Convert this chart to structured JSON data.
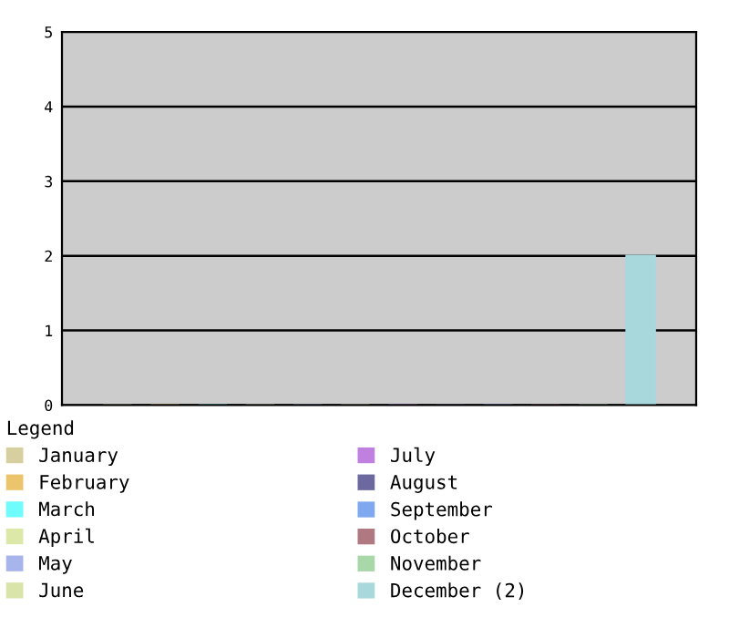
{
  "chart_data": {
    "type": "bar",
    "legend_title": "Legend",
    "categories": [
      null
    ],
    "series": [
      {
        "name": "January",
        "color": "#d8cfa0",
        "values": [
          0
        ]
      },
      {
        "name": "February",
        "color": "#ecc46c",
        "values": [
          0
        ]
      },
      {
        "name": "March",
        "color": "#6ffcfc",
        "values": [
          0
        ]
      },
      {
        "name": "April",
        "color": "#dce8a8",
        "values": [
          0
        ]
      },
      {
        "name": "May",
        "color": "#a8b4ec",
        "values": [
          0
        ]
      },
      {
        "name": "June",
        "color": "#d8e4a8",
        "values": [
          0
        ]
      },
      {
        "name": "July",
        "color": "#c080e0",
        "values": [
          0
        ]
      },
      {
        "name": "August",
        "color": "#6c68a0",
        "values": [
          0
        ]
      },
      {
        "name": "September",
        "color": "#80a8f0",
        "values": [
          0
        ]
      },
      {
        "name": "October",
        "color": "#b07880",
        "values": [
          0
        ]
      },
      {
        "name": "November",
        "color": "#a8d8a8",
        "values": [
          0
        ]
      },
      {
        "name": "December (2)",
        "color": "#a8d8dc",
        "values": [
          2
        ]
      }
    ],
    "ylim": [
      0,
      5
    ],
    "yticks": [
      0,
      1,
      2,
      3,
      4,
      5
    ],
    "grid": "y",
    "legend": "bottom",
    "tick_labels": "y"
  }
}
